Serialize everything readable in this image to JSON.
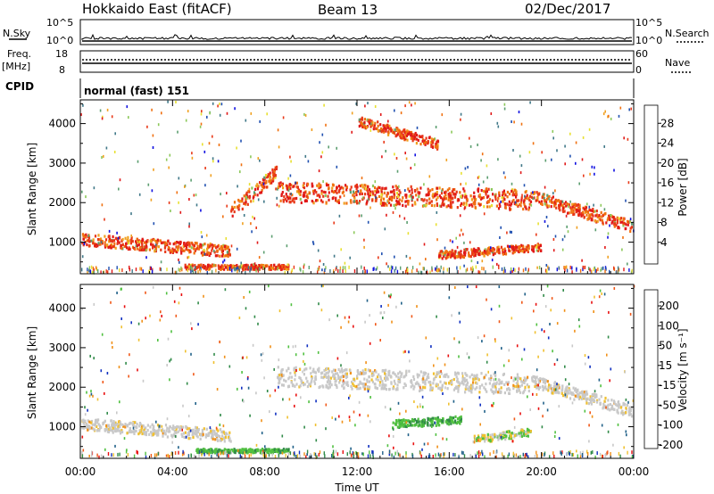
{
  "header": {
    "station": "Hokkaido East (fitACF)",
    "beam": "Beam 13",
    "date": "02/Dec/2017"
  },
  "sky_panel": {
    "left_label": "N.Sky",
    "right_label": "N.Search",
    "left_ticks": [
      "10^5",
      "10^0"
    ],
    "right_ticks": [
      "10^5",
      "10^0"
    ]
  },
  "freq_panel": {
    "label_top": "Freq.",
    "label_unit": "[MHz]",
    "left_ticks": [
      "18",
      "8"
    ],
    "right_ticks": [
      "60",
      "0"
    ],
    "right_label": "Nave"
  },
  "cpid_panel": {
    "label": "CPID",
    "value": "normal (fast) 151"
  },
  "chart_data": [
    {
      "type": "heatmap",
      "name": "power",
      "ylabel": "Slant Range [km]",
      "y_ticks": [
        "1000",
        "2000",
        "3000",
        "4000"
      ],
      "ylim": [
        200,
        4600
      ],
      "x_ticks": [
        "00:00",
        "04:00",
        "08:00",
        "12:00",
        "16:00",
        "20:00",
        "00:00"
      ],
      "xlim_hours": [
        0,
        24
      ],
      "colorbar": {
        "label": "Power [dB]",
        "ticks": [
          "4",
          "8",
          "12",
          "16",
          "20",
          "24",
          "28"
        ],
        "colors": [
          "#1010e0",
          "#2050b0",
          "#407888",
          "#5c9e70",
          "#8cc85a",
          "#e8e030",
          "#f0a020",
          "#f07010",
          "#e83818",
          "#e01818"
        ]
      },
      "features": [
        {
          "kind": "band",
          "t_start": 0.0,
          "t_end": 6.5,
          "range_start_km": 1100,
          "range_end_km": 800,
          "width_km": 300
        },
        {
          "kind": "band",
          "t_start": 6.5,
          "t_end": 8.5,
          "range_start_km": 1800,
          "range_end_km": 2800,
          "width_km": 350
        },
        {
          "kind": "band",
          "t_start": 8.5,
          "t_end": 19.5,
          "range_start_km": 2300,
          "range_end_km": 2100,
          "width_km": 500
        },
        {
          "kind": "band",
          "t_start": 19.5,
          "t_end": 24.0,
          "range_start_km": 2200,
          "range_end_km": 1400,
          "width_km": 300
        },
        {
          "kind": "band",
          "t_start": 15.5,
          "t_end": 20.0,
          "range_start_km": 700,
          "range_end_km": 900,
          "width_km": 200
        },
        {
          "kind": "band",
          "t_start": 4.5,
          "t_end": 9.0,
          "range_start_km": 400,
          "range_end_km": 400,
          "width_km": 120
        },
        {
          "kind": "band",
          "t_start": 12.0,
          "t_end": 15.5,
          "range_start_km": 4100,
          "range_end_km": 3500,
          "width_km": 250
        }
      ]
    },
    {
      "type": "heatmap",
      "name": "velocity",
      "ylabel": "Slant Range [km]",
      "y_ticks": [
        "1000",
        "2000",
        "3000",
        "4000"
      ],
      "ylim": [
        200,
        4600
      ],
      "x_ticks": [
        "00:00",
        "04:00",
        "08:00",
        "12:00",
        "16:00",
        "20:00",
        "00:00"
      ],
      "xlabel": "Time UT",
      "xlim_hours": [
        0,
        24
      ],
      "colorbar": {
        "label": "Velocity [m s⁻¹]",
        "ticks": [
          "200",
          "100",
          "50",
          "15",
          "-15",
          "-50",
          "-100",
          "-200"
        ],
        "colors": [
          "#1030c0",
          "#206088",
          "#308a48",
          "#50c040",
          "#c8c8c8",
          "#f0c030",
          "#f09018",
          "#f05818",
          "#e81010"
        ]
      },
      "features": [
        {
          "kind": "band",
          "t_start": 0.0,
          "t_end": 6.5,
          "range_start_km": 1100,
          "range_end_km": 800,
          "width_km": 300
        },
        {
          "kind": "band",
          "t_start": 8.5,
          "t_end": 19.5,
          "range_start_km": 2300,
          "range_end_km": 2100,
          "width_km": 500
        },
        {
          "kind": "band",
          "t_start": 19.5,
          "t_end": 24.0,
          "range_start_km": 2200,
          "range_end_km": 1400,
          "width_km": 300
        },
        {
          "kind": "band",
          "t_start": 13.5,
          "t_end": 16.5,
          "range_start_km": 1100,
          "range_end_km": 1200,
          "width_km": 200
        },
        {
          "kind": "band",
          "t_start": 17.0,
          "t_end": 19.5,
          "range_start_km": 700,
          "range_end_km": 900,
          "width_km": 200
        },
        {
          "kind": "band",
          "t_start": 5.0,
          "t_end": 9.0,
          "range_start_km": 420,
          "range_end_km": 420,
          "width_km": 100
        }
      ]
    }
  ]
}
